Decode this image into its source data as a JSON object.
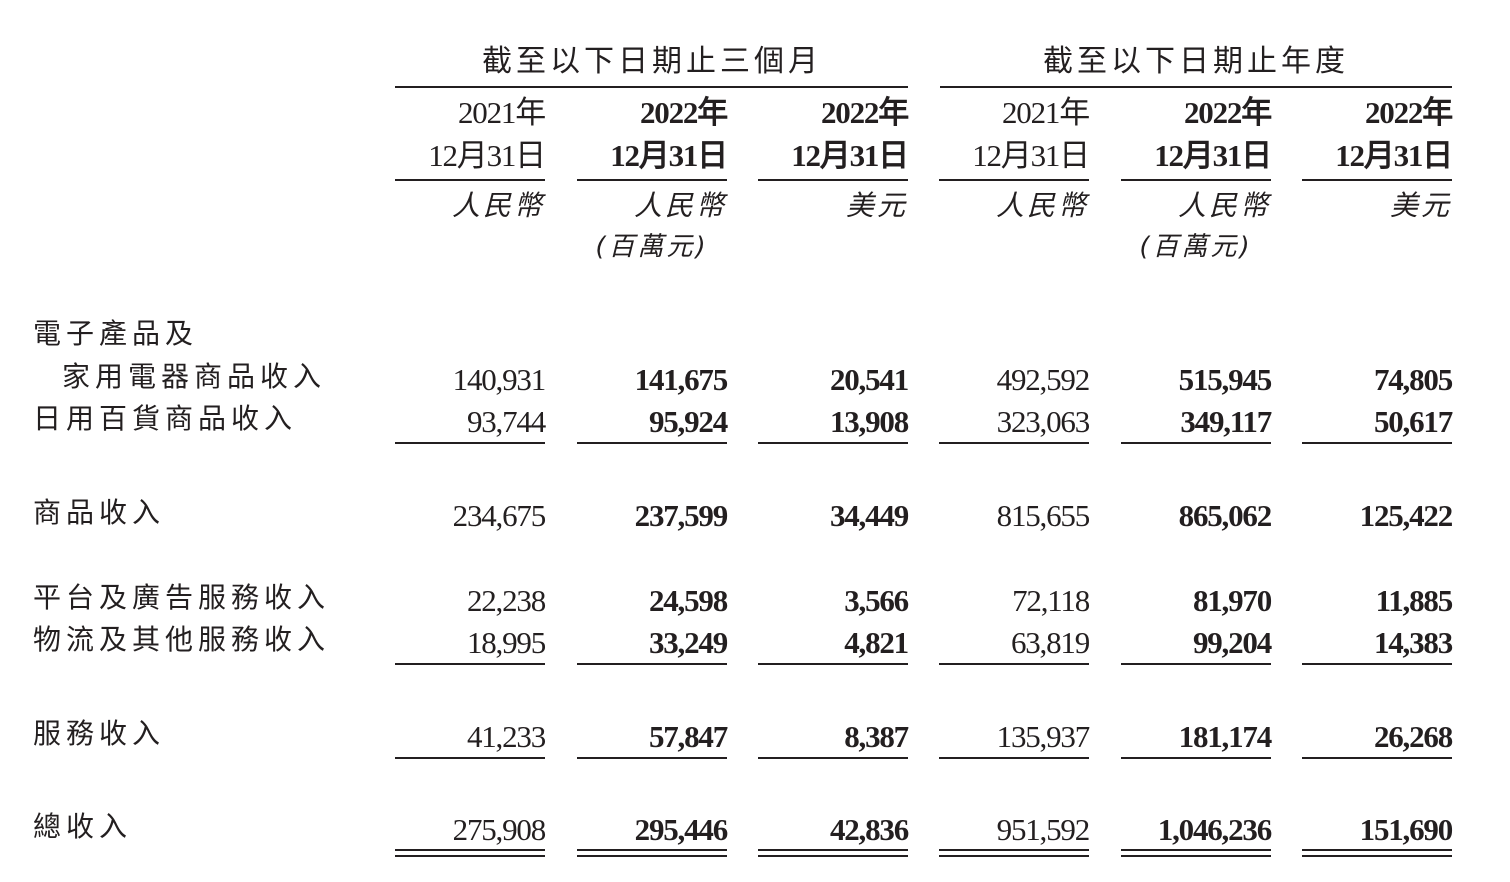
{
  "group_headers": [
    "截至以下日期止三個月",
    "截至以下日期止年度"
  ],
  "columns": [
    {
      "year": "2021年",
      "date": "12月31日",
      "currency": "人民幣",
      "bold": false
    },
    {
      "year": "2022年",
      "date": "12月31日",
      "currency": "人民幣",
      "bold": true
    },
    {
      "year": "2022年",
      "date": "12月31日",
      "currency": "美元",
      "bold": true
    },
    {
      "year": "2021年",
      "date": "12月31日",
      "currency": "人民幣",
      "bold": false
    },
    {
      "year": "2022年",
      "date": "12月31日",
      "currency": "人民幣",
      "bold": true
    },
    {
      "year": "2022年",
      "date": "12月31日",
      "currency": "美元",
      "bold": true
    }
  ],
  "unit_note": "(百萬元)",
  "rows": [
    {
      "label": "電子產品及",
      "values": []
    },
    {
      "label": "家用電器商品收入",
      "indent": true,
      "values": [
        "140,931",
        "141,675",
        "20,541",
        "492,592",
        "515,945",
        "74,805"
      ]
    },
    {
      "label": "日用百貨商品收入",
      "values": [
        "93,744",
        "95,924",
        "13,908",
        "323,063",
        "349,117",
        "50,617"
      ]
    },
    {
      "label": "商品收入",
      "values": [
        "234,675",
        "237,599",
        "34,449",
        "815,655",
        "865,062",
        "125,422"
      ]
    },
    {
      "label": "平台及廣告服務收入",
      "values": [
        "22,238",
        "24,598",
        "3,566",
        "72,118",
        "81,970",
        "11,885"
      ]
    },
    {
      "label": "物流及其他服務收入",
      "values": [
        "18,995",
        "33,249",
        "4,821",
        "63,819",
        "99,204",
        "14,383"
      ]
    },
    {
      "label": "服務收入",
      "values": [
        "41,233",
        "57,847",
        "8,387",
        "135,937",
        "181,174",
        "26,268"
      ]
    },
    {
      "label": "總收入",
      "values": [
        "275,908",
        "295,446",
        "42,836",
        "951,592",
        "1,046,236",
        "151,690"
      ]
    }
  ]
}
